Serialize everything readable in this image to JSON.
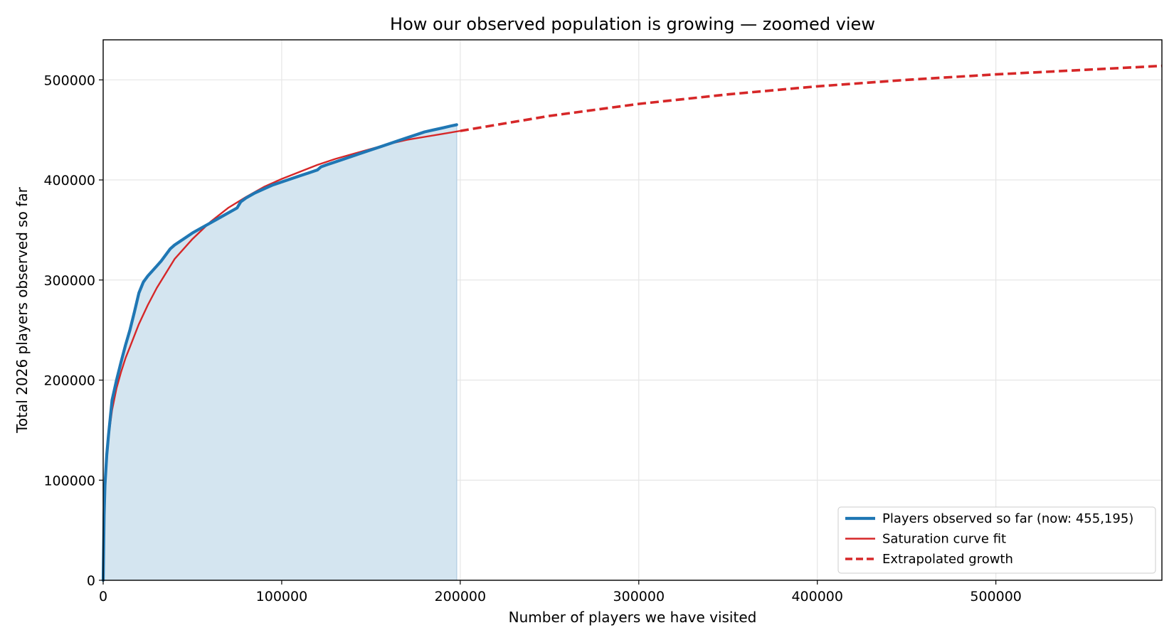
{
  "chart_data": {
    "type": "line",
    "title": "How our observed population is growing  —  zoomed view",
    "xlabel": "Number of players we have visited",
    "ylabel": "Total 2026 players observed so far",
    "xlim": [
      0,
      593000
    ],
    "ylim": [
      0,
      540000
    ],
    "x_ticks": [
      0,
      100000,
      200000,
      300000,
      400000,
      500000
    ],
    "y_ticks": [
      0,
      100000,
      200000,
      300000,
      400000,
      500000
    ],
    "x_tick_labels": [
      "0",
      "100000",
      "200000",
      "300000",
      "400000",
      "500000"
    ],
    "y_tick_labels": [
      "0",
      "100000",
      "200000",
      "300000",
      "400000",
      "500000"
    ],
    "grid": true,
    "legend_position": "bottom-right",
    "colors": {
      "observed": "#1f77b4",
      "observed_fill": "#d4e5f0",
      "fit": "#d62728"
    },
    "series": [
      {
        "name": "Players observed so far  (now: 455,195)",
        "style": "solid-thick",
        "filled": true,
        "x": [
          0,
          500,
          1000,
          2000,
          3000,
          5000,
          7500,
          10000,
          12500,
          15000,
          17500,
          20000,
          22500,
          25000,
          27500,
          30000,
          32500,
          35000,
          37500,
          40000,
          45000,
          50000,
          55000,
          60000,
          65000,
          70000,
          75000,
          77000,
          80000,
          85000,
          90000,
          95000,
          100000,
          105000,
          110000,
          115000,
          120000,
          122000,
          125000,
          130000,
          135000,
          140000,
          145000,
          150000,
          155000,
          160000,
          165000,
          170000,
          175000,
          180000,
          185000,
          190000,
          195000,
          198000
        ],
        "y": [
          0,
          65000,
          95000,
          125000,
          145000,
          180000,
          200000,
          218000,
          235000,
          250000,
          268000,
          287000,
          298000,
          304000,
          309000,
          314000,
          319000,
          325000,
          331000,
          335000,
          341000,
          347000,
          352000,
          357000,
          362000,
          367000,
          372000,
          378000,
          382000,
          387000,
          391000,
          395000,
          398000,
          401000,
          404000,
          407000,
          410000,
          413000,
          415000,
          418000,
          421000,
          424000,
          427000,
          430000,
          433000,
          436000,
          439000,
          442000,
          445000,
          448000,
          450000,
          452000,
          454000,
          455195
        ]
      },
      {
        "name": "Saturation curve fit",
        "style": "solid",
        "x": [
          0,
          1000,
          2000,
          3000,
          5000,
          7500,
          10000,
          12500,
          15000,
          20000,
          25000,
          30000,
          40000,
          50000,
          60000,
          70000,
          80000,
          90000,
          100000,
          110000,
          120000,
          130000,
          140000,
          150000,
          160000,
          170000,
          180000,
          190000,
          200000
        ],
        "y": [
          0,
          90000,
          123000,
          143000,
          170000,
          192000,
          208000,
          222000,
          233000,
          256000,
          275000,
          292000,
          321000,
          341000,
          358000,
          372000,
          383000,
          393000,
          401000,
          408000,
          415000,
          421000,
          426000,
          431000,
          436000,
          440000,
          443000,
          446000,
          449000
        ]
      },
      {
        "name": "Extrapolated growth",
        "style": "dashed",
        "x": [
          200000,
          250000,
          300000,
          350000,
          400000,
          450000,
          500000,
          550000,
          593000
        ],
        "y": [
          449000,
          464000,
          476000,
          485500,
          493500,
          500000,
          505500,
          510000,
          514000
        ]
      }
    ]
  }
}
